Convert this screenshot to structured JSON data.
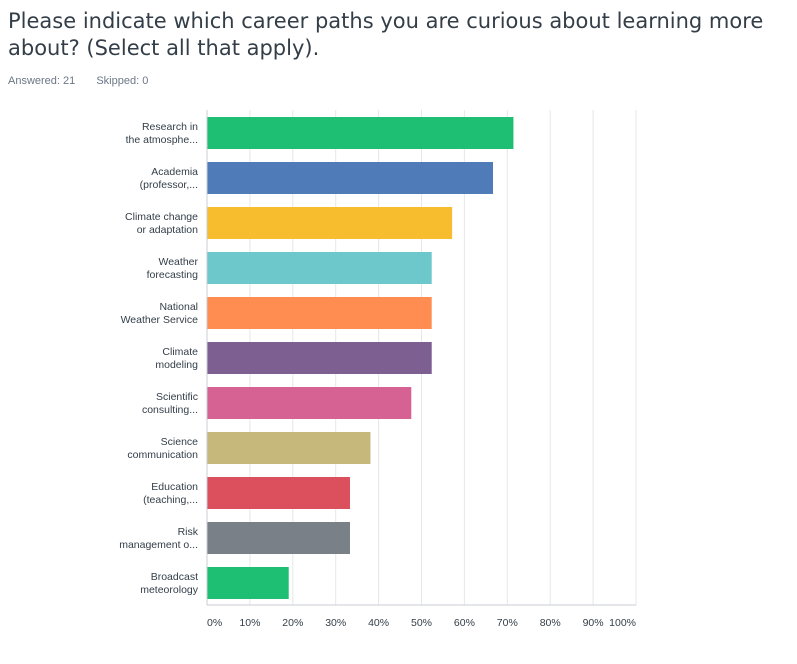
{
  "question": {
    "title": "Please indicate which career paths you are curious about learning more about? (Select all that apply).",
    "answered": "Answered: 21",
    "skipped": "Skipped: 0"
  },
  "colors": {
    "grid": "#e5e7ea",
    "axis": "#c8cdd3",
    "text": "#333e48"
  },
  "chart_data": {
    "type": "bar",
    "orientation": "horizontal",
    "categories": [
      [
        "Research in",
        "the atmosphe..."
      ],
      [
        "Academia",
        "(professor,..."
      ],
      [
        "Climate change",
        "or adaptation"
      ],
      [
        "Weather",
        "forecasting"
      ],
      [
        "National",
        "Weather Service"
      ],
      [
        "Climate",
        "modeling"
      ],
      [
        "Scientific",
        "consulting..."
      ],
      [
        "Science",
        "communication"
      ],
      [
        "Education",
        "(teaching,..."
      ],
      [
        "Risk",
        "management o..."
      ],
      [
        "Broadcast",
        "meteorology"
      ]
    ],
    "values": [
      71.43,
      66.67,
      57.14,
      52.38,
      52.38,
      52.38,
      47.62,
      38.1,
      33.33,
      33.33,
      19.05
    ],
    "colors": [
      "#1fbf73",
      "#4f7bb8",
      "#f7bd2e",
      "#6dc8cb",
      "#ff8d52",
      "#7d5f92",
      "#d56293",
      "#c6b77b",
      "#dc505e",
      "#7a8088",
      "#1fbf73"
    ],
    "xticks": [
      "0%",
      "10%",
      "20%",
      "30%",
      "40%",
      "50%",
      "60%",
      "70%",
      "80%",
      "90%",
      "100%"
    ],
    "xlim": [
      0,
      100
    ],
    "grid": true,
    "legend": "none"
  }
}
